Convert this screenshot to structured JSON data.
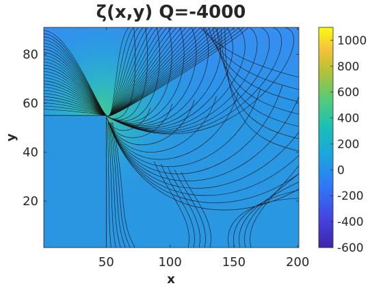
{
  "chart_data": {
    "type": "heatmap",
    "title": "ζ(x,y) Q=-4000",
    "xlabel": "x",
    "ylabel": "y",
    "xlim": [
      1,
      201
    ],
    "ylim": [
      1,
      91
    ],
    "x_ticks": [
      "50",
      "100",
      "150",
      "200"
    ],
    "y_ticks": [
      "20",
      "40",
      "60",
      "80"
    ],
    "colorbar": {
      "range": [
        -600,
        1100
      ],
      "ticks": [
        "1000",
        "800",
        "600",
        "400",
        "200",
        "0",
        "-200",
        "-400",
        "-600"
      ],
      "colormap": "parula"
    },
    "grid": false,
    "obstacle": {
      "x": [
        1,
        50
      ],
      "y": [
        1,
        55
      ]
    },
    "background_value": 100,
    "contours": "black contour lines fanning out from the obstacle corner near (50, 55)",
    "colors": {
      "obstacle_fill": "#2a95e1",
      "field_low": "#3c8ff2",
      "field_high": "#f4e83a"
    }
  }
}
